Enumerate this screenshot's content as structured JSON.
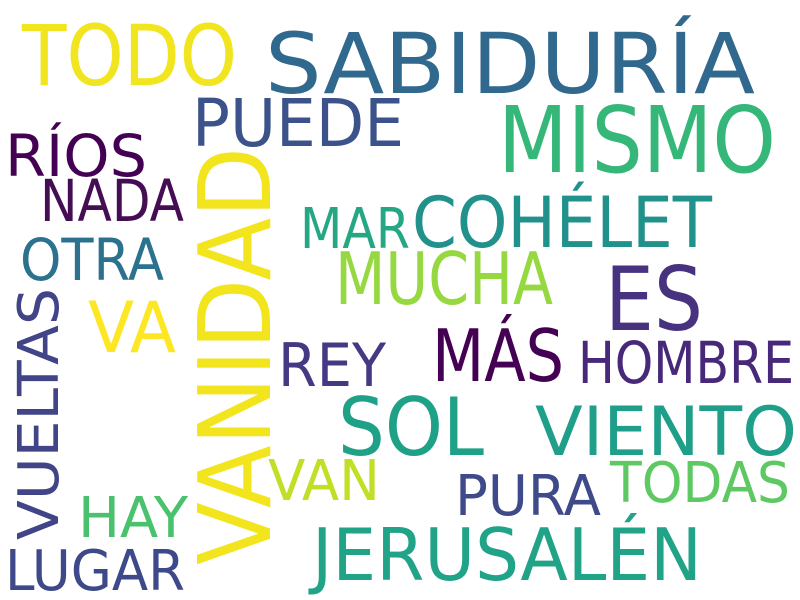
{
  "words": [
    {
      "id": "todo",
      "text": "TODO",
      "color": "#f0e51f"
    },
    {
      "id": "sabiduria",
      "text": "SABIDURÍA",
      "color": "#31688e"
    },
    {
      "id": "puede",
      "text": "PUEDE",
      "color": "#3b528b"
    },
    {
      "id": "mismo",
      "text": "MISMO",
      "color": "#35b779"
    },
    {
      "id": "rios",
      "text": "RÍOS",
      "color": "#440154"
    },
    {
      "id": "nada",
      "text": "NADA",
      "color": "#450d54"
    },
    {
      "id": "vanidad",
      "text": "VANIDAD",
      "color": "#f2e51d"
    },
    {
      "id": "mar",
      "text": "MAR",
      "color": "#26a784"
    },
    {
      "id": "cohelet",
      "text": "COHÉLET",
      "color": "#21918c"
    },
    {
      "id": "otra",
      "text": "OTRA",
      "color": "#2c728e"
    },
    {
      "id": "mucha",
      "text": "MUCHA",
      "color": "#95d840"
    },
    {
      "id": "es",
      "text": "ES",
      "color": "#46327e"
    },
    {
      "id": "va",
      "text": "VA",
      "color": "#fde725"
    },
    {
      "id": "vueltas",
      "text": "VUELTAS",
      "color": "#414487"
    },
    {
      "id": "rey",
      "text": "REY",
      "color": "#443983"
    },
    {
      "id": "mas",
      "text": "MÁS",
      "color": "#440154"
    },
    {
      "id": "hombre",
      "text": "HOMBRE",
      "color": "#482878"
    },
    {
      "id": "sol",
      "text": "SOL",
      "color": "#1fa187"
    },
    {
      "id": "viento",
      "text": "VIENTO",
      "color": "#1f9e89"
    },
    {
      "id": "van",
      "text": "VAN",
      "color": "#c0df25"
    },
    {
      "id": "todas",
      "text": "TODAS",
      "color": "#5ec962"
    },
    {
      "id": "pura",
      "text": "PURA",
      "color": "#3e4a89"
    },
    {
      "id": "hay",
      "text": "HAY",
      "color": "#4ac16d"
    },
    {
      "id": "jerusalen",
      "text": "JERUSALÉN",
      "color": "#20a386"
    },
    {
      "id": "lugar",
      "text": "LUGAR",
      "color": "#3e4989"
    }
  ]
}
